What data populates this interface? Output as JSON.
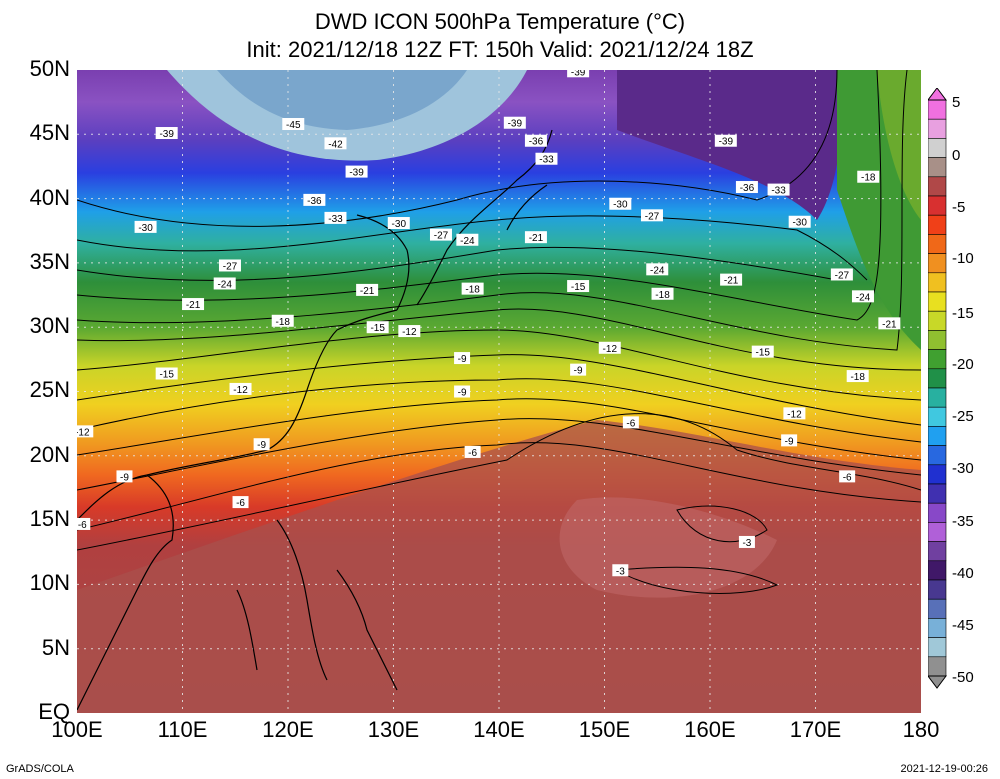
{
  "title_line1": "DWD ICON 500hPa Temperature (°C)",
  "title_line2": "Init: 2021/12/18 12Z  FT: 150h  Valid: 2021/12/24 18Z",
  "lat_ticks": [
    "50N",
    "45N",
    "40N",
    "35N",
    "30N",
    "25N",
    "20N",
    "15N",
    "10N",
    "5N",
    "EQ"
  ],
  "lon_ticks": [
    "100E",
    "110E",
    "120E",
    "130E",
    "140E",
    "150E",
    "160E",
    "170E",
    "180"
  ],
  "colorbar_ticks": [
    "5",
    "0",
    "-5",
    "-10",
    "-15",
    "-20",
    "-25",
    "-30",
    "-35",
    "-40",
    "-45",
    "-50"
  ],
  "colorbar_colors": [
    "#f070e0",
    "#e8a0e0",
    "#d0d0d0",
    "#a89088",
    "#b04848",
    "#d83030",
    "#f04018",
    "#f06818",
    "#f09020",
    "#f0c020",
    "#e8e020",
    "#c8d828",
    "#90c030",
    "#40a030",
    "#209048",
    "#28b0a0",
    "#40c8e0",
    "#20a0f0",
    "#2868e0",
    "#2030d0",
    "#4030b0",
    "#8848c8",
    "#b060d8",
    "#7040a0",
    "#401868",
    "#483890",
    "#5870b8",
    "#78b0d8",
    "#a0c8d8",
    "#909090"
  ],
  "contour_labels": [
    {
      "v": "-45",
      "lon": 120.5,
      "lat": 45.8
    },
    {
      "v": "-42",
      "lon": 124.5,
      "lat": 44.3
    },
    {
      "v": "-39",
      "lon": 108.5,
      "lat": 45.1
    },
    {
      "v": "-39",
      "lon": 126.5,
      "lat": 42.1
    },
    {
      "v": "-39",
      "lon": 147.5,
      "lat": 49.9
    },
    {
      "v": "-39",
      "lon": 141.5,
      "lat": 45.9
    },
    {
      "v": "-39",
      "lon": 161.5,
      "lat": 44.5
    },
    {
      "v": "-36",
      "lon": 143.5,
      "lat": 44.5
    },
    {
      "v": "-36",
      "lon": 122.5,
      "lat": 39.9
    },
    {
      "v": "-36",
      "lon": 163.5,
      "lat": 40.9
    },
    {
      "v": "-33",
      "lon": 144.5,
      "lat": 43.1
    },
    {
      "v": "-33",
      "lon": 124.5,
      "lat": 38.5
    },
    {
      "v": "-33",
      "lon": 166.5,
      "lat": 40.7
    },
    {
      "v": "-30",
      "lon": 106.5,
      "lat": 37.8
    },
    {
      "v": "-30",
      "lon": 130.5,
      "lat": 38.1
    },
    {
      "v": "-30",
      "lon": 151.5,
      "lat": 39.6
    },
    {
      "v": "-30",
      "lon": 168.5,
      "lat": 38.2
    },
    {
      "v": "-27",
      "lon": 114.5,
      "lat": 34.8
    },
    {
      "v": "-27",
      "lon": 134.5,
      "lat": 37.2
    },
    {
      "v": "-27",
      "lon": 154.5,
      "lat": 38.7
    },
    {
      "v": "-27",
      "lon": 172.5,
      "lat": 34.1
    },
    {
      "v": "-24",
      "lon": 114.0,
      "lat": 33.4
    },
    {
      "v": "-24",
      "lon": 137.0,
      "lat": 36.8
    },
    {
      "v": "-24",
      "lon": 155.0,
      "lat": 34.5
    },
    {
      "v": "-24",
      "lon": 174.5,
      "lat": 32.4
    },
    {
      "v": "-21",
      "lon": 111.0,
      "lat": 31.8
    },
    {
      "v": "-21",
      "lon": 127.5,
      "lat": 32.9
    },
    {
      "v": "-21",
      "lon": 143.5,
      "lat": 37.0
    },
    {
      "v": "-21",
      "lon": 162.0,
      "lat": 33.7
    },
    {
      "v": "-21",
      "lon": 177.0,
      "lat": 30.3
    },
    {
      "v": "-18",
      "lon": 119.5,
      "lat": 30.5
    },
    {
      "v": "-18",
      "lon": 137.5,
      "lat": 33.0
    },
    {
      "v": "-18",
      "lon": 155.5,
      "lat": 32.6
    },
    {
      "v": "-18",
      "lon": 175.0,
      "lat": 41.7
    },
    {
      "v": "-18",
      "lon": 174.0,
      "lat": 26.2
    },
    {
      "v": "-15",
      "lon": 108.5,
      "lat": 26.4
    },
    {
      "v": "-15",
      "lon": 128.5,
      "lat": 30.0
    },
    {
      "v": "-15",
      "lon": 147.5,
      "lat": 33.2
    },
    {
      "v": "-15",
      "lon": 165.0,
      "lat": 28.1
    },
    {
      "v": "-12",
      "lon": 115.5,
      "lat": 25.2
    },
    {
      "v": "-12",
      "lon": 131.5,
      "lat": 29.7
    },
    {
      "v": "-12",
      "lon": 150.5,
      "lat": 28.4
    },
    {
      "v": "-12",
      "lon": 168.0,
      "lat": 23.3
    },
    {
      "v": "-12",
      "lon": 100.5,
      "lat": 21.9
    },
    {
      "v": "-9",
      "lon": 136.5,
      "lat": 27.6
    },
    {
      "v": "-9",
      "lon": 136.5,
      "lat": 25.0
    },
    {
      "v": "-9",
      "lon": 147.5,
      "lat": 26.7
    },
    {
      "v": "-9",
      "lon": 104.5,
      "lat": 18.4
    },
    {
      "v": "-9",
      "lon": 117.5,
      "lat": 20.9
    },
    {
      "v": "-9",
      "lon": 167.5,
      "lat": 21.2
    },
    {
      "v": "-6",
      "lon": 137.5,
      "lat": 20.3
    },
    {
      "v": "-6",
      "lon": 115.5,
      "lat": 16.4
    },
    {
      "v": "-6",
      "lon": 100.5,
      "lat": 14.7
    },
    {
      "v": "-6",
      "lon": 152.5,
      "lat": 22.6
    },
    {
      "v": "-6",
      "lon": 173.0,
      "lat": 18.4
    },
    {
      "v": "-3",
      "lon": 163.5,
      "lat": 13.3
    },
    {
      "v": "-3",
      "lon": 151.5,
      "lat": 11.1
    }
  ]
}
